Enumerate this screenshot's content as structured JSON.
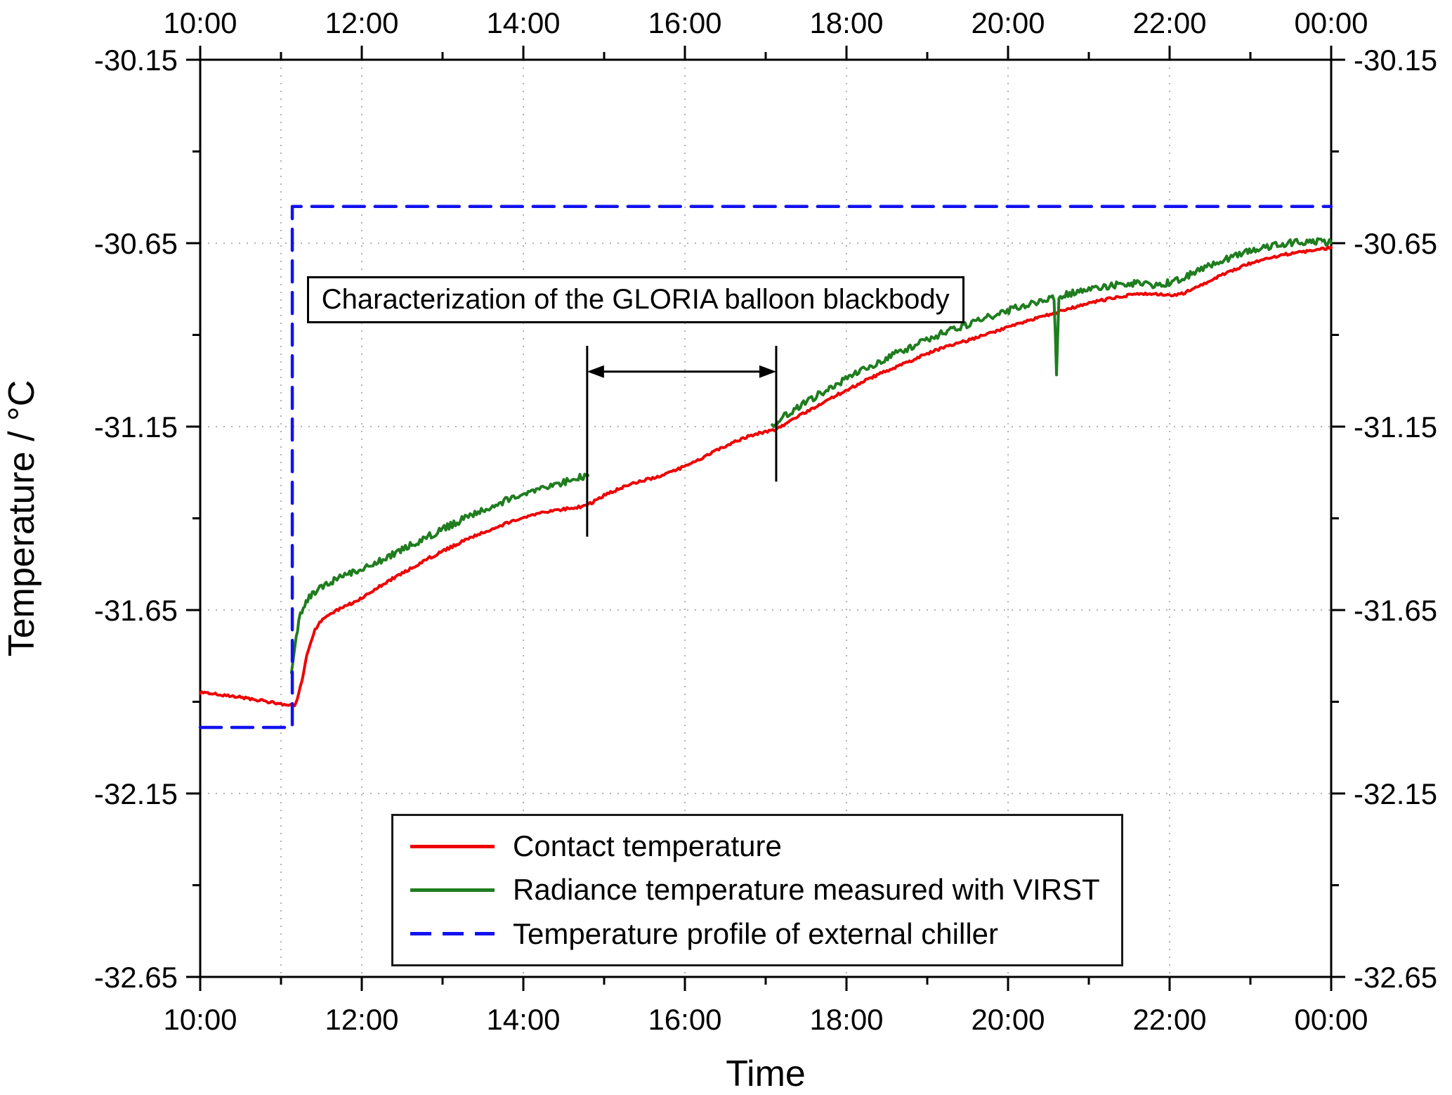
{
  "chart_data": {
    "type": "line",
    "xlabel": "Time",
    "ylabel": "Temperature / °C",
    "xlim": [
      10,
      24
    ],
    "ylim": [
      -32.65,
      -30.15
    ],
    "x_tick_values": [
      10,
      12,
      14,
      16,
      18,
      20,
      22,
      24
    ],
    "x_tick_labels": [
      "10:00",
      "12:00",
      "14:00",
      "16:00",
      "18:00",
      "20:00",
      "22:00",
      "00:00"
    ],
    "x_minor_ticks": [
      11,
      13,
      15,
      17,
      19,
      21,
      23
    ],
    "y_tick_values": [
      -30.15,
      -30.65,
      -31.15,
      -31.65,
      -32.15,
      -32.65
    ],
    "y_tick_labels": [
      "-30.15",
      "-30.65",
      "-31.15",
      "-31.65",
      "-32.15",
      "-32.65"
    ],
    "y_minor_ticks": [
      -30.4,
      -30.9,
      -31.4,
      -31.9,
      -32.4
    ],
    "grid_x": [
      11,
      12,
      14,
      16,
      18,
      20,
      22
    ],
    "grid_y": [
      -30.65,
      -31.15,
      -31.65,
      -32.15
    ],
    "grid_style": "dotted",
    "axis_sides": [
      "top",
      "bottom",
      "left",
      "right"
    ],
    "series": [
      {
        "name": "Contact temperature",
        "color": "#ee0000",
        "dash": false,
        "noise": 0.0035,
        "segments": [
          [
            [
              10.0,
              -31.875
            ],
            [
              10.15,
              -31.878
            ],
            [
              10.3,
              -31.882
            ],
            [
              10.45,
              -31.886
            ],
            [
              10.6,
              -31.891
            ],
            [
              10.75,
              -31.897
            ],
            [
              10.9,
              -31.902
            ],
            [
              11.0,
              -31.906
            ],
            [
              11.1,
              -31.91
            ],
            [
              11.17,
              -31.913
            ],
            [
              11.2,
              -31.895
            ],
            [
              11.24,
              -31.86
            ],
            [
              11.28,
              -31.82
            ],
            [
              11.32,
              -31.775
            ],
            [
              11.37,
              -31.735
            ],
            [
              11.42,
              -31.705
            ],
            [
              11.48,
              -31.685
            ],
            [
              11.55,
              -31.67
            ],
            [
              11.65,
              -31.655
            ],
            [
              11.75,
              -31.645
            ],
            [
              11.87,
              -31.632
            ],
            [
              12.0,
              -31.618
            ],
            [
              12.2,
              -31.588
            ],
            [
              12.4,
              -31.562
            ],
            [
              12.6,
              -31.538
            ],
            [
              12.8,
              -31.512
            ],
            [
              13.0,
              -31.49
            ],
            [
              13.2,
              -31.468
            ],
            [
              13.4,
              -31.448
            ],
            [
              13.6,
              -31.43
            ],
            [
              13.8,
              -31.413
            ],
            [
              14.0,
              -31.398
            ],
            [
              14.2,
              -31.386
            ],
            [
              14.4,
              -31.378
            ],
            [
              14.6,
              -31.372
            ],
            [
              14.79,
              -31.365
            ],
            [
              14.9,
              -31.35
            ],
            [
              15.0,
              -31.337
            ],
            [
              15.2,
              -31.318
            ],
            [
              15.4,
              -31.302
            ],
            [
              15.6,
              -31.29
            ],
            [
              15.8,
              -31.276
            ],
            [
              16.0,
              -31.258
            ],
            [
              16.2,
              -31.236
            ],
            [
              16.4,
              -31.214
            ],
            [
              16.6,
              -31.193
            ],
            [
              16.8,
              -31.175
            ],
            [
              17.0,
              -31.163
            ],
            [
              17.13,
              -31.158
            ],
            [
              17.3,
              -31.135
            ],
            [
              17.5,
              -31.11
            ],
            [
              17.7,
              -31.087
            ],
            [
              17.9,
              -31.062
            ],
            [
              18.1,
              -31.04
            ],
            [
              18.3,
              -31.017
            ],
            [
              18.5,
              -30.998
            ],
            [
              18.7,
              -30.98
            ],
            [
              18.9,
              -30.96
            ],
            [
              19.1,
              -30.942
            ],
            [
              19.3,
              -30.928
            ],
            [
              19.5,
              -30.915
            ],
            [
              19.7,
              -30.9
            ],
            [
              19.9,
              -30.886
            ],
            [
              20.1,
              -30.872
            ],
            [
              20.3,
              -30.858
            ],
            [
              20.5,
              -30.845
            ],
            [
              20.7,
              -30.832
            ],
            [
              20.9,
              -30.82
            ],
            [
              21.1,
              -30.808
            ],
            [
              21.3,
              -30.8
            ],
            [
              21.5,
              -30.792
            ],
            [
              21.7,
              -30.788
            ],
            [
              21.85,
              -30.79
            ],
            [
              22.0,
              -30.792
            ],
            [
              22.15,
              -30.788
            ],
            [
              22.3,
              -30.775
            ],
            [
              22.45,
              -30.758
            ],
            [
              22.6,
              -30.742
            ],
            [
              22.8,
              -30.722
            ],
            [
              23.0,
              -30.705
            ],
            [
              23.2,
              -30.692
            ],
            [
              23.4,
              -30.682
            ],
            [
              23.6,
              -30.675
            ],
            [
              23.8,
              -30.668
            ],
            [
              24.0,
              -30.662
            ]
          ]
        ]
      },
      {
        "name": "Radiance temperature measured with VIRST",
        "color": "#1f7d1f",
        "dash": false,
        "noise": 0.009,
        "segments": [
          [
            [
              11.13,
              -31.825
            ],
            [
              11.16,
              -31.77
            ],
            [
              11.19,
              -31.72
            ],
            [
              11.22,
              -31.68
            ],
            [
              11.26,
              -31.65
            ],
            [
              11.31,
              -31.628
            ],
            [
              11.37,
              -31.61
            ],
            [
              11.44,
              -31.597
            ],
            [
              11.52,
              -31.585
            ],
            [
              11.62,
              -31.573
            ],
            [
              11.73,
              -31.562
            ],
            [
              11.85,
              -31.552
            ],
            [
              12.0,
              -31.54
            ],
            [
              12.2,
              -31.518
            ],
            [
              12.4,
              -31.497
            ],
            [
              12.6,
              -31.474
            ],
            [
              12.8,
              -31.452
            ],
            [
              13.0,
              -31.43
            ],
            [
              13.2,
              -31.408
            ],
            [
              13.4,
              -31.388
            ],
            [
              13.6,
              -31.368
            ],
            [
              13.8,
              -31.35
            ],
            [
              14.0,
              -31.334
            ],
            [
              14.2,
              -31.32
            ],
            [
              14.4,
              -31.308
            ],
            [
              14.6,
              -31.295
            ],
            [
              14.8,
              -31.283
            ]
          ],
          [
            [
              17.08,
              -31.148
            ],
            [
              17.25,
              -31.118
            ],
            [
              17.45,
              -31.09
            ],
            [
              17.65,
              -31.063
            ],
            [
              17.85,
              -31.038
            ],
            [
              18.05,
              -31.013
            ],
            [
              18.25,
              -30.99
            ],
            [
              18.45,
              -30.968
            ],
            [
              18.65,
              -30.947
            ],
            [
              18.85,
              -30.927
            ],
            [
              19.05,
              -30.908
            ],
            [
              19.25,
              -30.89
            ],
            [
              19.45,
              -30.875
            ],
            [
              19.65,
              -30.86
            ],
            [
              19.85,
              -30.845
            ],
            [
              20.05,
              -30.83
            ],
            [
              20.25,
              -30.816
            ],
            [
              20.45,
              -30.803
            ],
            [
              20.57,
              -30.797
            ],
            [
              20.6,
              -31.0
            ],
            [
              20.63,
              -30.795
            ],
            [
              20.8,
              -30.785
            ],
            [
              21.0,
              -30.777
            ],
            [
              21.15,
              -30.77
            ],
            [
              21.3,
              -30.764
            ],
            [
              21.45,
              -30.76
            ],
            [
              21.6,
              -30.76
            ],
            [
              21.75,
              -30.764
            ],
            [
              21.9,
              -30.762
            ],
            [
              22.05,
              -30.755
            ],
            [
              22.2,
              -30.742
            ],
            [
              22.35,
              -30.726
            ],
            [
              22.5,
              -30.71
            ],
            [
              22.65,
              -30.697
            ],
            [
              22.8,
              -30.685
            ],
            [
              22.95,
              -30.675
            ],
            [
              23.1,
              -30.666
            ],
            [
              23.25,
              -30.658
            ],
            [
              23.4,
              -30.652
            ],
            [
              23.55,
              -30.648
            ],
            [
              23.7,
              -30.646
            ],
            [
              23.85,
              -30.646
            ],
            [
              24.0,
              -30.648
            ]
          ]
        ]
      },
      {
        "name": "Temperature profile of external chiller",
        "color": "#1212f0",
        "dash": true,
        "noise": 0,
        "segments": [
          [
            [
              10.0,
              -31.97
            ],
            [
              11.14,
              -31.97
            ],
            [
              11.14,
              -30.55
            ],
            [
              24.0,
              -30.55
            ]
          ]
        ]
      }
    ],
    "annotations": {
      "textbox": {
        "text": "Characterization of the GLORIA balloon blackbody",
        "x": 11.32,
        "y": -30.74
      },
      "span_arrow": {
        "x1": 14.79,
        "x2": 17.13,
        "y": -31.0,
        "whisker1": [
          -30.93,
          -31.45
        ],
        "whisker2": [
          -30.93,
          -31.3
        ]
      }
    },
    "legend_position": "bottom-center-inside"
  }
}
